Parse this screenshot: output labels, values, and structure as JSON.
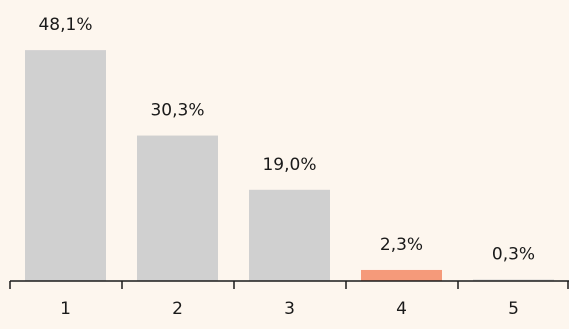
{
  "chart_data": {
    "type": "bar",
    "categories": [
      "1",
      "2",
      "3",
      "4",
      "5"
    ],
    "values": [
      48.1,
      30.3,
      19.0,
      2.3,
      0.3
    ],
    "data_labels": [
      "48,1%",
      "30,3%",
      "19,0%",
      "2,3%",
      "0,3%"
    ],
    "unit": "%",
    "ylim": [
      0,
      50
    ],
    "grid": false,
    "colors": [
      "#d0d0d0",
      "#d0d0d0",
      "#d0d0d0",
      "#f59a7a",
      "#d0d0d0"
    ],
    "axis_color": "#1a1a1a",
    "highlight_category": "4"
  }
}
